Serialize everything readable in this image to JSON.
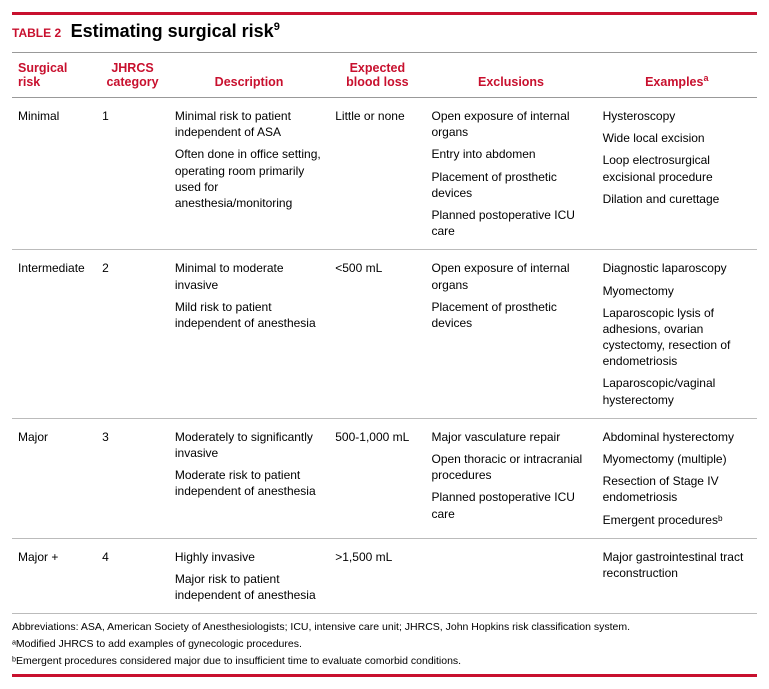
{
  "title": {
    "label": "TABLE 2",
    "caption": "Estimating surgical risk",
    "caption_sup": "9"
  },
  "headers": {
    "risk": "Surgical risk",
    "category": "JHRCS category",
    "description": "Description",
    "blood": "Expected blood loss",
    "exclusions": "Exclusions",
    "examples": "Examples",
    "examples_sup": "a"
  },
  "rows": [
    {
      "risk": "Minimal",
      "category": "1",
      "description": [
        "Minimal risk to patient independent of ASA",
        "Often done in office setting, operating room primarily used for anesthesia/monitoring"
      ],
      "blood": "Little or none",
      "exclusions": [
        "Open exposure of internal organs",
        "Entry into abdomen",
        "Placement of prosthetic devices",
        "Planned postoperative ICU care"
      ],
      "examples": [
        "Hysteroscopy",
        "Wide local excision",
        "Loop electrosurgical excisional procedure",
        "Dilation and curettage"
      ]
    },
    {
      "risk": "Intermediate",
      "category": "2",
      "description": [
        "Minimal to moderate invasive",
        "Mild risk to patient independent of anesthesia"
      ],
      "blood": "<500 mL",
      "exclusions": [
        "Open exposure of internal organs",
        "Placement of prosthetic devices"
      ],
      "examples": [
        "Diagnostic laparoscopy",
        "Myomectomy",
        "Laparoscopic lysis of adhesions, ovarian cystectomy, resection of endometriosis",
        "Laparoscopic/vaginal hysterectomy"
      ]
    },
    {
      "risk": "Major",
      "category": "3",
      "description": [
        "Moderately to significantly invasive",
        "Moderate risk to patient independent of anesthesia"
      ],
      "blood": "500-1,000 mL",
      "exclusions": [
        "Major vasculature repair",
        "Open thoracic or intracranial procedures",
        "Planned postoperative ICU care"
      ],
      "examples": [
        "Abdominal hysterectomy",
        "Myomectomy (multiple)",
        "Resection of Stage IV endometriosis",
        "Emergent proceduresᵇ"
      ]
    },
    {
      "risk": "Major +",
      "category": "4",
      "description": [
        "Highly invasive",
        "Major risk to patient independent of anesthesia"
      ],
      "blood": ">1,500 mL",
      "exclusions": [],
      "examples": [
        "Major gastrointestinal tract reconstruction"
      ]
    }
  ],
  "footnotes": [
    "Abbreviations: ASA, American Society of Anesthesiologists; ICU, intensive care unit; JHRCS, John Hopkins risk classification system.",
    "ᵃModified JHRCS to add examples of gynecologic procedures.",
    "ᵇEmergent procedures considered major due to insufficient time to evaluate comorbid conditions."
  ],
  "colors": {
    "accent": "#c8102e",
    "text": "#000000",
    "rule": "#999999"
  }
}
